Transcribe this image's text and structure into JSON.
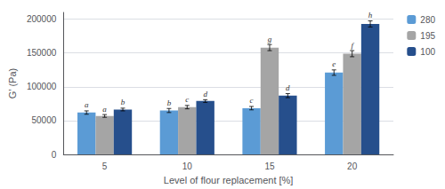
{
  "chart_data": {
    "type": "bar",
    "xlabel": "Level of flour replacement [%]",
    "ylabel": "G’ (Pa)",
    "categories": [
      "5",
      "10",
      "15",
      "20"
    ],
    "series": [
      {
        "name": "280",
        "color": "#5B9BD5",
        "values": [
          62000,
          65000,
          68500,
          121000
        ],
        "errors": [
          2500,
          3000,
          2500,
          4000
        ],
        "annotations": [
          "a",
          "b",
          "c",
          "e"
        ]
      },
      {
        "name": "195",
        "color": "#A5A5A5",
        "values": [
          57000,
          70000,
          158000,
          149000
        ],
        "errors": [
          2000,
          2500,
          4500,
          4500
        ],
        "annotations": [
          "a",
          "c",
          "g",
          "f"
        ]
      },
      {
        "name": "100",
        "color": "#264F8C",
        "values": [
          66500,
          79000,
          87000,
          193000
        ],
        "errors": [
          2000,
          2000,
          3000,
          4500
        ],
        "annotations": [
          "b",
          "d",
          "d",
          "h"
        ]
      }
    ],
    "ylim": [
      0,
      210000
    ],
    "yticks": [
      0,
      50000,
      100000,
      150000,
      200000
    ],
    "grid": true,
    "legend": "right"
  }
}
